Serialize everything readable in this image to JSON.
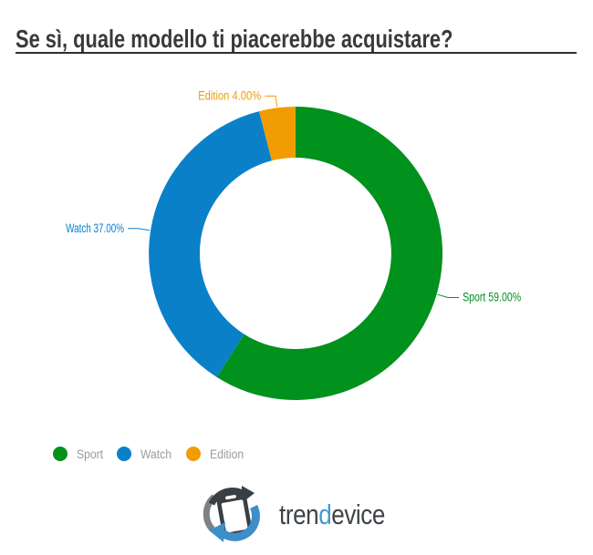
{
  "title": {
    "text": "Se sì, quale modello ti piacerebbe acquistare?"
  },
  "chart_data": {
    "type": "pie",
    "subtype": "donut",
    "title": "Se sì, quale modello ti piacerebbe acquistare?",
    "categories": [
      "Sport",
      "Watch",
      "Edition"
    ],
    "values": [
      59.0,
      37.0,
      4.0
    ],
    "slices": [
      {
        "label": "Sport",
        "value": 59.0,
        "display_label": "Sport 59.00%",
        "color": "#01911d"
      },
      {
        "label": "Watch",
        "value": 37.0,
        "display_label": "Watch 37.00%",
        "color": "#0a80c9"
      },
      {
        "label": "Edition",
        "value": 4.0,
        "display_label": "Edition 4.00%",
        "color": "#f19c02"
      }
    ],
    "start_angle_deg": 0,
    "direction": "clockwise",
    "inner_radius_ratio": 0.65,
    "legend_position": "bottom-left",
    "value_format": "percent-2dp"
  },
  "legend": {
    "items": [
      {
        "label": "Sport",
        "color": "#01911d"
      },
      {
        "label": "Watch",
        "color": "#0a80c9"
      },
      {
        "label": "Edition",
        "color": "#f19c02"
      }
    ],
    "text_color": "#9b9b9b"
  },
  "logo": {
    "brand_prefix": "tren",
    "brand_accent": "d",
    "brand_suffix": "evice",
    "accent_color": "#3d9bd4",
    "text_color": "#3e4347"
  },
  "style": {
    "title_color": "#3a3a3a",
    "underline_color": "#2f2f2f",
    "background": "#ffffff"
  }
}
